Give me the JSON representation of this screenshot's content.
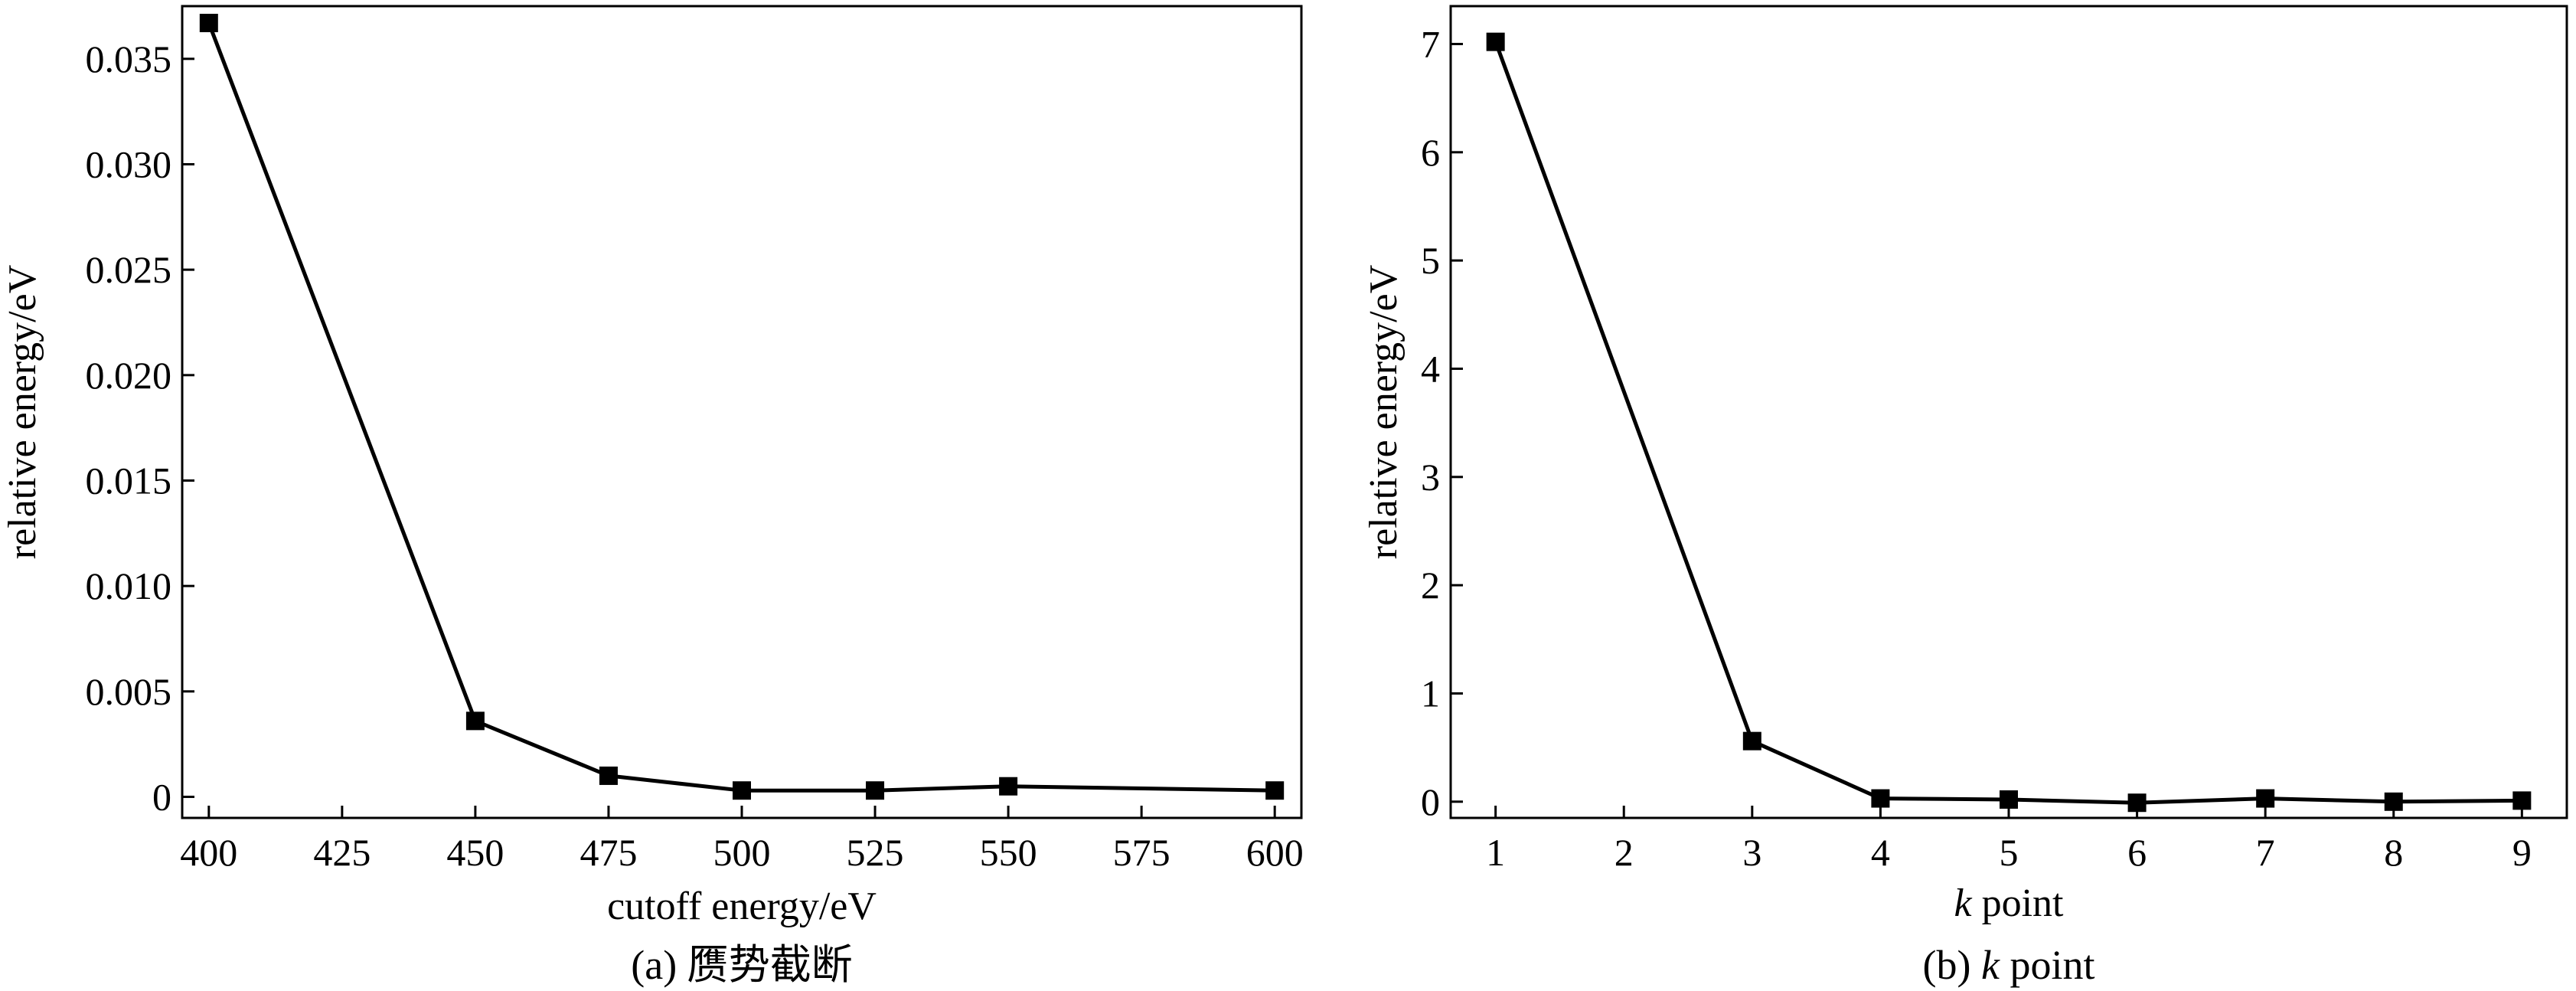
{
  "chart_data": [
    {
      "type": "line",
      "xlabel": "cutoff energy/eV",
      "ylabel": "relative energy/eV",
      "caption": "(a) 赝势截断",
      "xlim": [
        395,
        605
      ],
      "ylim": [
        -0.001,
        0.0375
      ],
      "x_ticks": [
        "400",
        "425",
        "450",
        "475",
        "500",
        "525",
        "550",
        "575",
        "600"
      ],
      "y_ticks": [
        "0",
        "0.005",
        "0.010",
        "0.015",
        "0.020",
        "0.025",
        "0.030",
        "0.035"
      ],
      "x": [
        400,
        450,
        475,
        500,
        525,
        550,
        600
      ],
      "y": [
        0.0367,
        0.0036,
        0.001,
        0.0003,
        0.0003,
        0.0005,
        0.0003
      ],
      "grid": false,
      "marker": "square"
    },
    {
      "type": "line",
      "xlabel_k": "k",
      "xlabel_rest": " point",
      "ylabel": "relative energy/eV",
      "caption_prefix": "(b) ",
      "caption_k": "k",
      "caption_rest": " point",
      "xlim": [
        0.65,
        9.35
      ],
      "ylim": [
        -0.15,
        7.35
      ],
      "x_ticks": [
        "1",
        "2",
        "3",
        "4",
        "5",
        "6",
        "7",
        "8",
        "9"
      ],
      "y_ticks": [
        "0",
        "1",
        "2",
        "3",
        "4",
        "5",
        "6",
        "7"
      ],
      "x": [
        1,
        3,
        4,
        5,
        6,
        7,
        8,
        9
      ],
      "y": [
        7.02,
        0.56,
        0.03,
        0.02,
        -0.01,
        0.03,
        0.0,
        0.01
      ],
      "grid": false,
      "marker": "square"
    }
  ]
}
